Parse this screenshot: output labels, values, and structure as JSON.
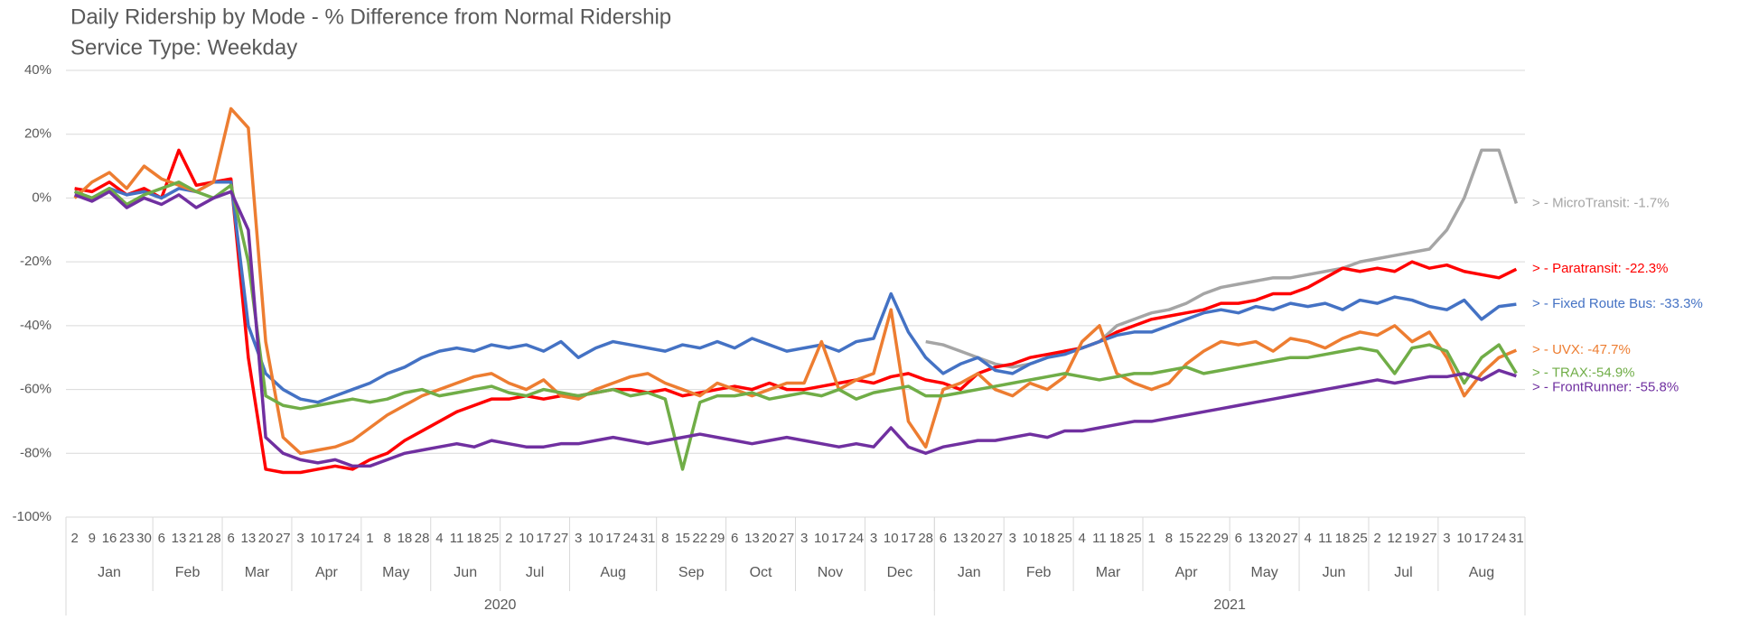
{
  "chart_data": {
    "type": "line",
    "title": "Daily Ridership by Mode - % Difference from Normal Ridership",
    "subtitle": "Service Type: Weekday",
    "ylim": [
      -100,
      40
    ],
    "yticks": [
      {
        "value": -100,
        "label": "-100%"
      },
      {
        "value": -80,
        "label": "-80%"
      },
      {
        "value": -60,
        "label": "-60%"
      },
      {
        "value": -40,
        "label": "-40%"
      },
      {
        "value": -20,
        "label": "-20%"
      },
      {
        "value": 0,
        "label": "0%"
      },
      {
        "value": 20,
        "label": "20%"
      },
      {
        "value": 40,
        "label": "40%"
      }
    ],
    "grid": true,
    "years": [
      {
        "label": "2020",
        "months": [
          {
            "label": "Jan",
            "days": [
              "2",
              "9",
              "16",
              "23",
              "30"
            ]
          },
          {
            "label": "Feb",
            "days": [
              "6",
              "13",
              "21",
              "28"
            ]
          },
          {
            "label": "Mar",
            "days": [
              "6",
              "13",
              "20",
              "27"
            ]
          },
          {
            "label": "Apr",
            "days": [
              "3",
              "10",
              "17",
              "24"
            ]
          },
          {
            "label": "May",
            "days": [
              "1",
              "8",
              "18",
              "28"
            ]
          },
          {
            "label": "Jun",
            "days": [
              "4",
              "11",
              "18",
              "25"
            ]
          },
          {
            "label": "Jul",
            "days": [
              "2",
              "10",
              "17",
              "27"
            ]
          },
          {
            "label": "Aug",
            "days": [
              "3",
              "10",
              "17",
              "24",
              "31"
            ]
          },
          {
            "label": "Sep",
            "days": [
              "8",
              "15",
              "22",
              "29"
            ]
          },
          {
            "label": "Oct",
            "days": [
              "6",
              "13",
              "20",
              "27"
            ]
          },
          {
            "label": "Nov",
            "days": [
              "3",
              "10",
              "17",
              "24"
            ]
          },
          {
            "label": "Dec",
            "days": [
              "3",
              "10",
              "17",
              "28"
            ]
          }
        ]
      },
      {
        "label": "2021",
        "months": [
          {
            "label": "Jan",
            "days": [
              "6",
              "13",
              "20",
              "27"
            ]
          },
          {
            "label": "Feb",
            "days": [
              "3",
              "10",
              "18",
              "25"
            ]
          },
          {
            "label": "Mar",
            "days": [
              "4",
              "11",
              "18",
              "25"
            ]
          },
          {
            "label": "Apr",
            "days": [
              "1",
              "8",
              "15",
              "22",
              "29"
            ]
          },
          {
            "label": "May",
            "days": [
              "6",
              "13",
              "20",
              "27"
            ]
          },
          {
            "label": "Jun",
            "days": [
              "4",
              "11",
              "18",
              "25"
            ]
          },
          {
            "label": "Jul",
            "days": [
              "2",
              "12",
              "19",
              "27"
            ]
          },
          {
            "label": "Aug",
            "days": [
              "3",
              "10",
              "17",
              "24",
              "31"
            ]
          }
        ]
      }
    ],
    "series": [
      {
        "name": "MicroTransit",
        "color": "#a5a5a5",
        "end_label": "> - MicroTransit: -1.7%",
        "values": [
          null,
          null,
          null,
          null,
          null,
          null,
          null,
          null,
          null,
          null,
          null,
          null,
          null,
          null,
          null,
          null,
          null,
          null,
          null,
          null,
          null,
          null,
          null,
          null,
          null,
          null,
          null,
          null,
          null,
          null,
          null,
          null,
          null,
          null,
          null,
          null,
          null,
          null,
          null,
          null,
          null,
          null,
          null,
          null,
          null,
          null,
          null,
          null,
          null,
          -45,
          -46,
          -48,
          -50,
          -52,
          -53,
          -52,
          -50,
          -48,
          -47,
          -45,
          -40,
          -38,
          -36,
          -35,
          -33,
          -30,
          -28,
          -27,
          -26,
          -25,
          -25,
          -24,
          -23,
          -22,
          -20,
          -19,
          -18,
          -17,
          -16,
          -10,
          0,
          15,
          15,
          -1.7
        ]
      },
      {
        "name": "Paratransit",
        "color": "#ff0000",
        "end_label": "> - Paratransit: -22.3%",
        "values": [
          3,
          2,
          5,
          1,
          3,
          0,
          15,
          4,
          5,
          6,
          -50,
          -85,
          -86,
          -86,
          -85,
          -84,
          -85,
          -82,
          -80,
          -76,
          -73,
          -70,
          -67,
          -65,
          -63,
          -63,
          -62,
          -63,
          -62,
          -62,
          -61,
          -60,
          -60,
          -61,
          -60,
          -62,
          -61,
          -60,
          -59,
          -60,
          -58,
          -60,
          -60,
          -59,
          -58,
          -57,
          -58,
          -56,
          -55,
          -57,
          -58,
          -60,
          -55,
          -53,
          -52,
          -50,
          -49,
          -48,
          -47,
          -45,
          -42,
          -40,
          -38,
          -37,
          -36,
          -35,
          -33,
          -33,
          -32,
          -30,
          -30,
          -28,
          -25,
          -22,
          -23,
          -22,
          -23,
          -20,
          -22,
          -21,
          -23,
          -24,
          -25,
          -22.3
        ]
      },
      {
        "name": "Fixed Route Bus",
        "color": "#4472c4",
        "end_label": "> - Fixed Route Bus: -33.3%",
        "values": [
          2,
          0,
          3,
          1,
          2,
          0,
          3,
          2,
          5,
          5,
          -40,
          -55,
          -60,
          -63,
          -64,
          -62,
          -60,
          -58,
          -55,
          -53,
          -50,
          -48,
          -47,
          -48,
          -46,
          -47,
          -46,
          -48,
          -45,
          -50,
          -47,
          -45,
          -46,
          -47,
          -48,
          -46,
          -47,
          -45,
          -47,
          -44,
          -46,
          -48,
          -47,
          -46,
          -48,
          -45,
          -44,
          -30,
          -42,
          -50,
          -55,
          -52,
          -50,
          -54,
          -55,
          -52,
          -50,
          -49,
          -47,
          -45,
          -43,
          -42,
          -42,
          -40,
          -38,
          -36,
          -35,
          -36,
          -34,
          -35,
          -33,
          -34,
          -33,
          -35,
          -32,
          -33,
          -31,
          -32,
          -34,
          -35,
          -32,
          -38,
          -34,
          -33.3
        ]
      },
      {
        "name": "UVX",
        "color": "#ed7d31",
        "end_label": "> - UVX: -47.7%",
        "values": [
          0,
          5,
          8,
          3,
          10,
          6,
          4,
          2,
          5,
          28,
          22,
          -45,
          -75,
          -80,
          -79,
          -78,
          -76,
          -72,
          -68,
          -65,
          -62,
          -60,
          -58,
          -56,
          -55,
          -58,
          -60,
          -57,
          -62,
          -63,
          -60,
          -58,
          -56,
          -55,
          -58,
          -60,
          -62,
          -58,
          -60,
          -62,
          -60,
          -58,
          -58,
          -45,
          -60,
          -57,
          -55,
          -35,
          -70,
          -78,
          -60,
          -58,
          -55,
          -60,
          -62,
          -58,
          -60,
          -56,
          -45,
          -40,
          -55,
          -58,
          -60,
          -58,
          -52,
          -48,
          -45,
          -46,
          -45,
          -48,
          -44,
          -45,
          -47,
          -44,
          -42,
          -43,
          -40,
          -45,
          -42,
          -50,
          -62,
          -55,
          -50,
          -47.7
        ]
      },
      {
        "name": "TRAX",
        "color": "#70ad47",
        "end_label": "> - TRAX:-54.9%",
        "values": [
          2,
          0,
          3,
          -2,
          1,
          3,
          5,
          2,
          0,
          4,
          -20,
          -62,
          -65,
          -66,
          -65,
          -64,
          -63,
          -64,
          -63,
          -61,
          -60,
          -62,
          -61,
          -60,
          -59,
          -61,
          -62,
          -60,
          -61,
          -62,
          -61,
          -60,
          -62,
          -61,
          -63,
          -85,
          -64,
          -62,
          -62,
          -61,
          -63,
          -62,
          -61,
          -62,
          -60,
          -63,
          -61,
          -60,
          -59,
          -62,
          -62,
          -61,
          -60,
          -59,
          -58,
          -57,
          -56,
          -55,
          -56,
          -57,
          -56,
          -55,
          -55,
          -54,
          -53,
          -55,
          -54,
          -53,
          -52,
          -51,
          -50,
          -50,
          -49,
          -48,
          -47,
          -48,
          -55,
          -47,
          -46,
          -48,
          -58,
          -50,
          -46,
          -54.9
        ]
      },
      {
        "name": "FrontRunner",
        "color": "#7030a0",
        "end_label": "> - FrontRunner: -55.8%",
        "values": [
          1,
          -1,
          2,
          -3,
          0,
          -2,
          1,
          -3,
          0,
          2,
          -10,
          -75,
          -80,
          -82,
          -83,
          -82,
          -84,
          -84,
          -82,
          -80,
          -79,
          -78,
          -77,
          -78,
          -76,
          -77,
          -78,
          -78,
          -77,
          -77,
          -76,
          -75,
          -76,
          -77,
          -76,
          -75,
          -74,
          -75,
          -76,
          -77,
          -76,
          -75,
          -76,
          -77,
          -78,
          -77,
          -78,
          -72,
          -78,
          -80,
          -78,
          -77,
          -76,
          -76,
          -75,
          -74,
          -75,
          -73,
          -73,
          -72,
          -71,
          -70,
          -70,
          -69,
          -68,
          -67,
          -66,
          -65,
          -64,
          -63,
          -62,
          -61,
          -60,
          -59,
          -58,
          -57,
          -58,
          -57,
          -56,
          -56,
          -55,
          -57,
          -54,
          -55.8
        ]
      }
    ]
  }
}
